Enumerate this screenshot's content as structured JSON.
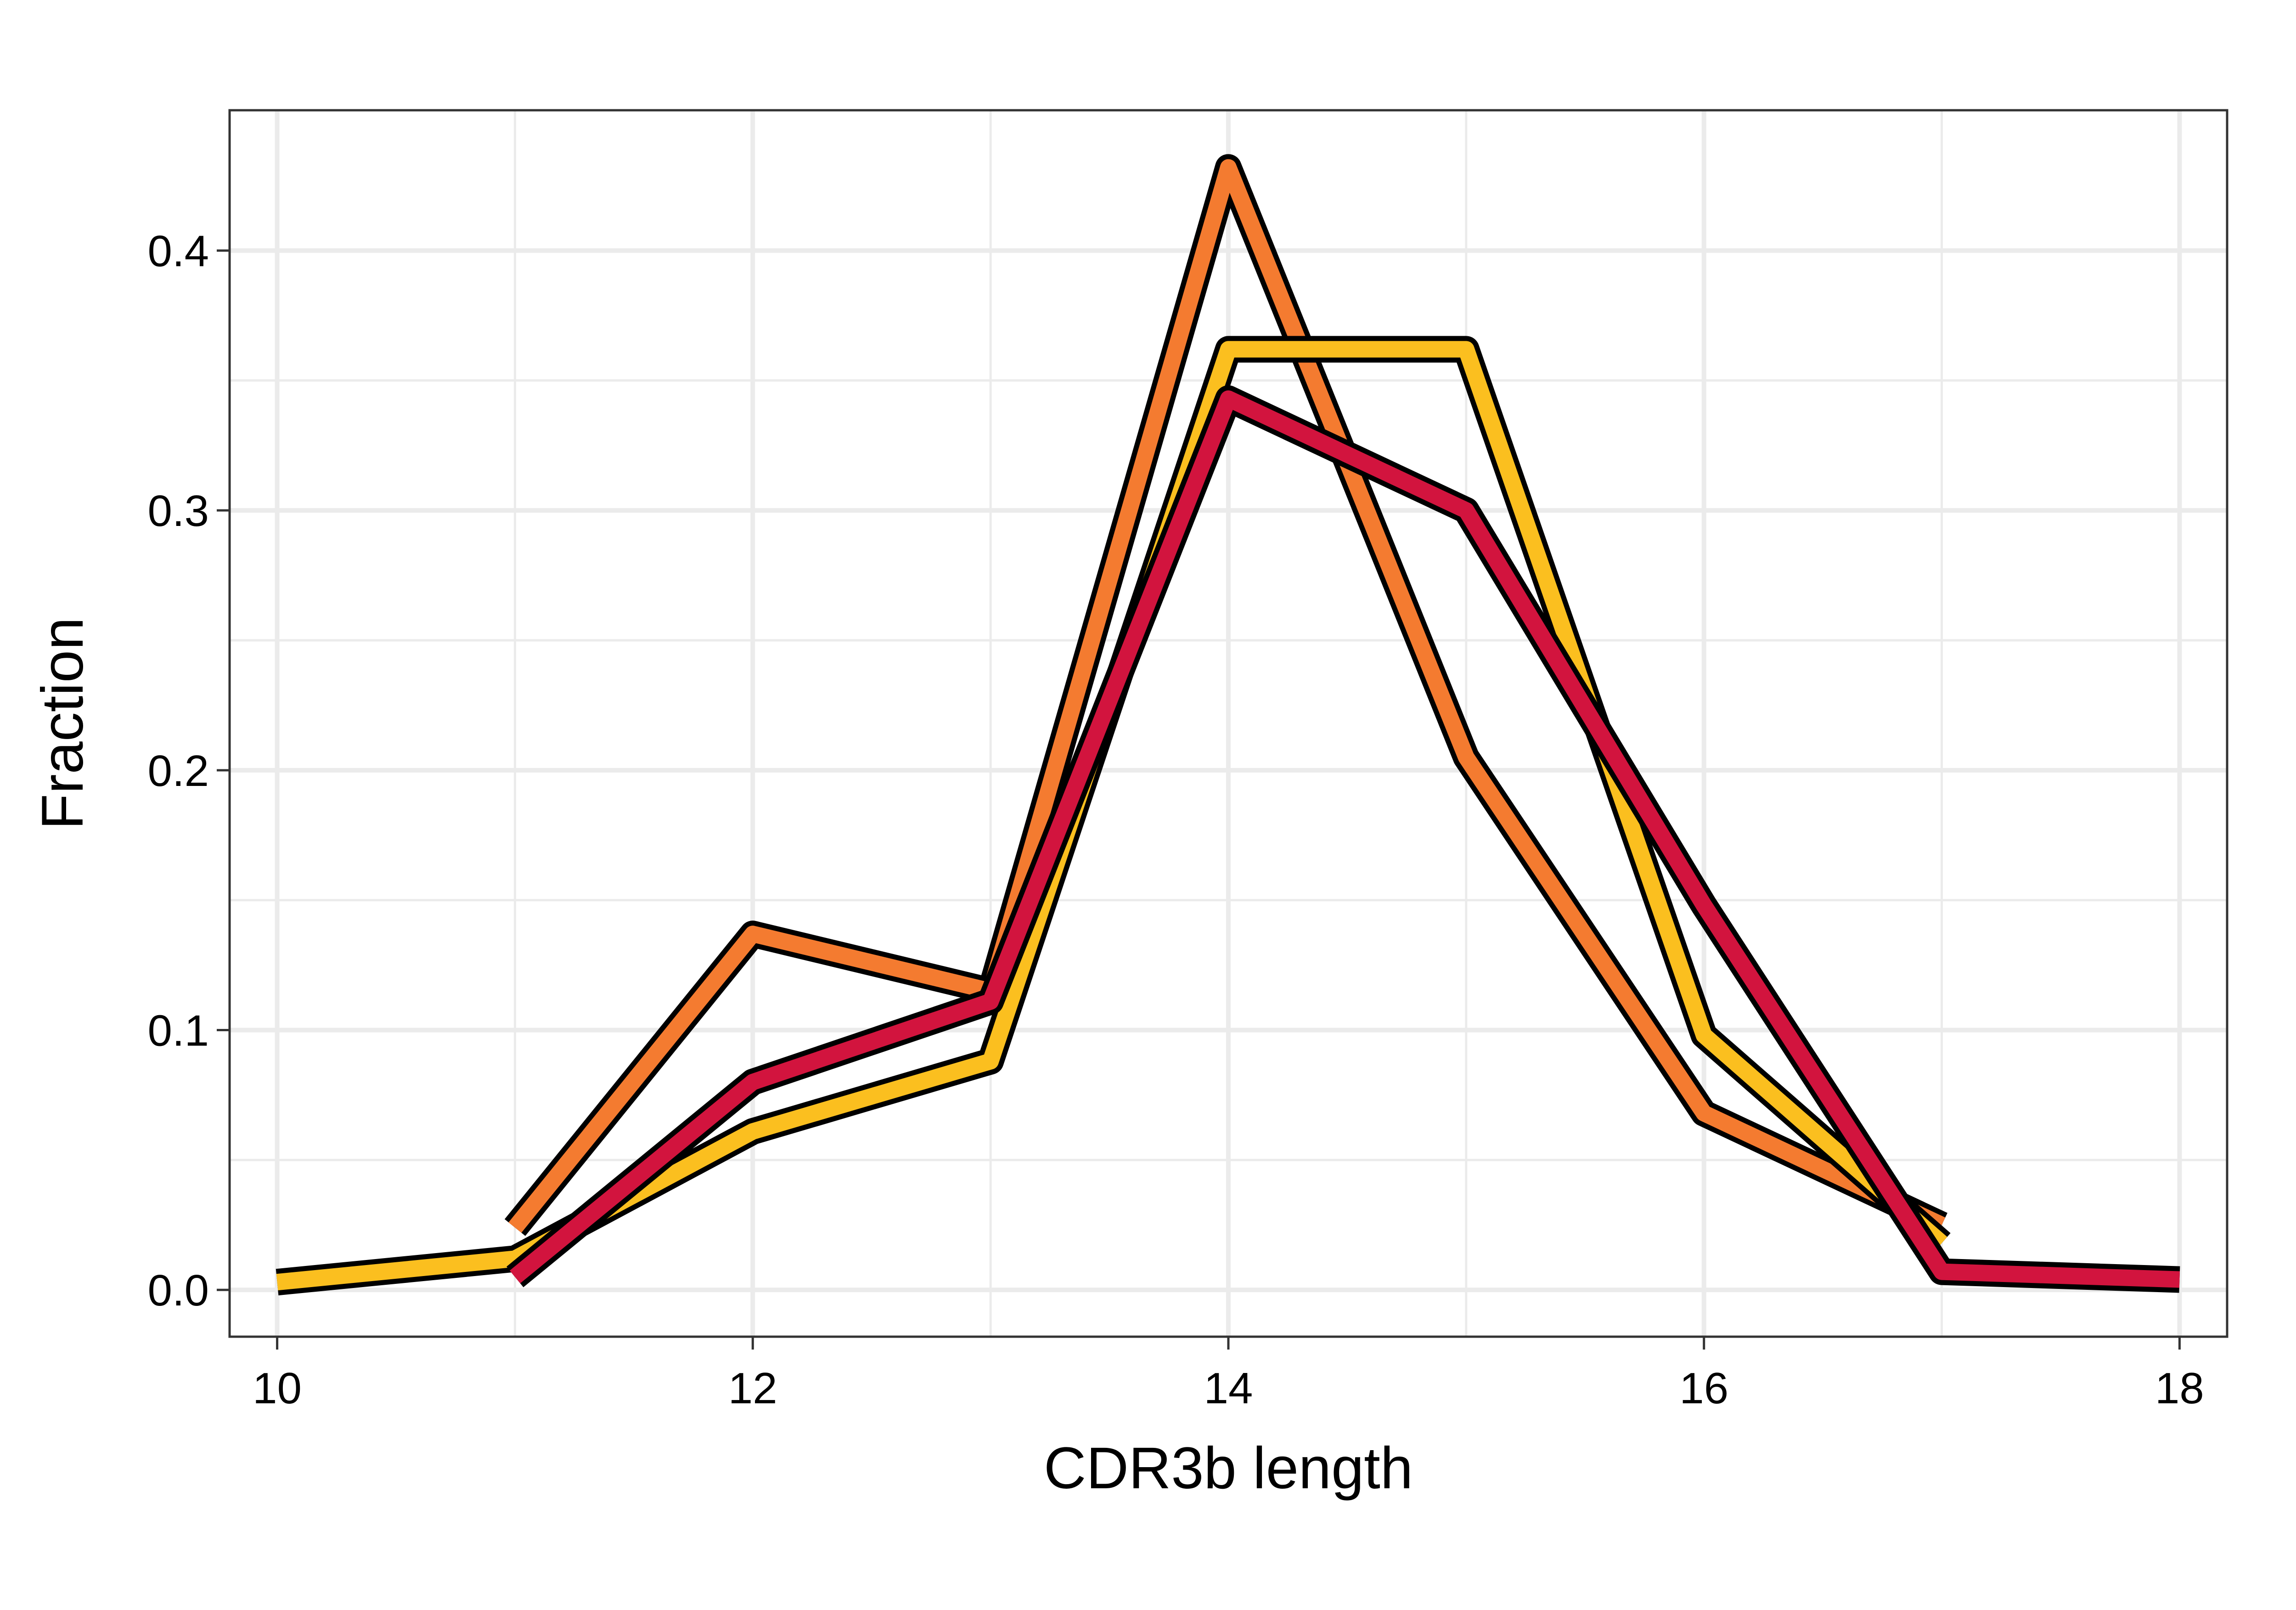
{
  "chart_data": {
    "type": "line",
    "title": "",
    "xlabel": "CDR3b length",
    "ylabel": "Fraction",
    "xlim": [
      9.8,
      18.2
    ],
    "ylim": [
      -0.018,
      0.454
    ],
    "x_ticks": [
      10,
      12,
      14,
      16,
      18
    ],
    "x_tick_labels": [
      "10",
      "12",
      "14",
      "16",
      "18"
    ],
    "y_ticks": [
      0.0,
      0.1,
      0.2,
      0.3,
      0.4
    ],
    "y_tick_labels": [
      "0.0",
      "0.1",
      "0.2",
      "0.3",
      "0.4"
    ],
    "grid": true,
    "legend": "none",
    "series": [
      {
        "color": "#F47B30",
        "x": [
          11,
          12,
          13,
          14,
          15,
          16,
          17
        ],
        "y": [
          0.024,
          0.137,
          0.115,
          0.432,
          0.205,
          0.068,
          0.025
        ]
      },
      {
        "color": "#FBBF1F",
        "x": [
          10,
          11,
          12,
          13,
          14,
          15,
          16,
          17
        ],
        "y": [
          0.003,
          0.012,
          0.061,
          0.088,
          0.362,
          0.362,
          0.098,
          0.018
        ]
      },
      {
        "color": "#D2143E",
        "x": [
          11,
          12,
          13,
          14,
          15,
          16,
          17,
          18
        ],
        "y": [
          0.005,
          0.08,
          0.111,
          0.343,
          0.3,
          0.148,
          0.007,
          0.004
        ]
      }
    ]
  }
}
